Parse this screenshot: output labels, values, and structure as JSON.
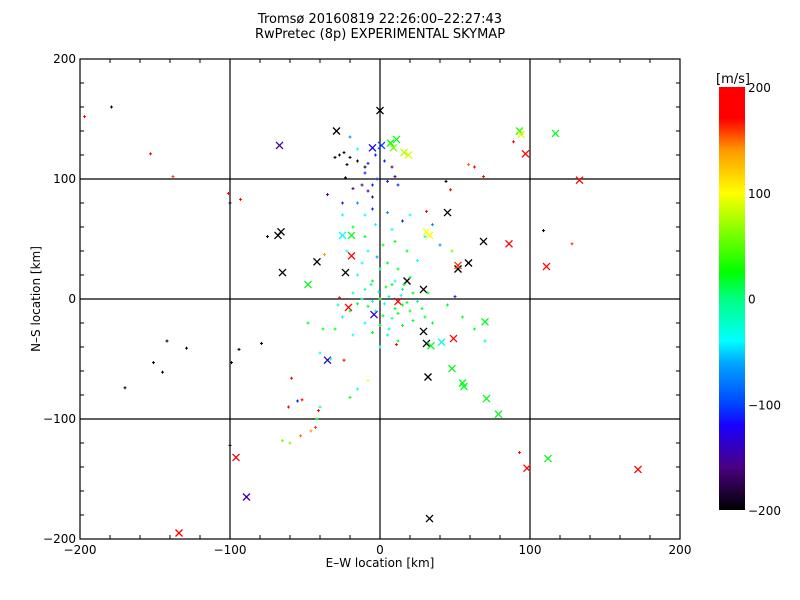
{
  "chart_data": {
    "type": "scatter",
    "title": "Tromsø 20160819 22:26:00–22:27:43",
    "subtitle": "RwPretec (8p) EXPERIMENTAL SKYMAP",
    "xlabel": "E–W location [km]",
    "ylabel": "N–S location [km]",
    "xlim": [
      -200,
      200
    ],
    "ylim": [
      -200,
      200
    ],
    "xticks": [
      -200,
      -100,
      0,
      100,
      200
    ],
    "yticks": [
      -200,
      -100,
      0,
      100,
      200
    ],
    "grid": true,
    "colorbar": {
      "label": "[m/s]",
      "range": [
        -200,
        200
      ],
      "ticks": [
        200,
        100,
        0,
        -100,
        -200
      ],
      "stops": [
        {
          "v": -200,
          "c": "#000000"
        },
        {
          "v": -160,
          "c": "#4a0080"
        },
        {
          "v": -120,
          "c": "#1a00ff"
        },
        {
          "v": -100,
          "c": "#0044ff"
        },
        {
          "v": -60,
          "c": "#00aaff"
        },
        {
          "v": -40,
          "c": "#00ffff"
        },
        {
          "v": 0,
          "c": "#00ff80"
        },
        {
          "v": 25,
          "c": "#00ff00"
        },
        {
          "v": 100,
          "c": "#ffff00"
        },
        {
          "v": 140,
          "c": "#ff9900"
        },
        {
          "v": 170,
          "c": "#ff0000"
        },
        {
          "v": 200,
          "c": "#ff0000"
        }
      ]
    },
    "series": [
      {
        "name": "crosses",
        "marker": "x",
        "points": [
          [
            0,
            157,
            -200
          ],
          [
            -29,
            140,
            -200
          ],
          [
            -67,
            128,
            -150
          ],
          [
            -68,
            53,
            -200
          ],
          [
            -66,
            56,
            -200
          ],
          [
            -65,
            22,
            -200
          ],
          [
            -42,
            31,
            -200
          ],
          [
            -23,
            22,
            -200
          ],
          [
            -25,
            53,
            -40
          ],
          [
            -19,
            53,
            20
          ],
          [
            -21,
            -7,
            190
          ],
          [
            -19,
            36,
            190
          ],
          [
            -35,
            -51,
            -140
          ],
          [
            -48,
            12,
            20
          ],
          [
            31,
            56,
            100
          ],
          [
            33,
            53,
            100
          ],
          [
            45,
            72,
            -200
          ],
          [
            69,
            48,
            -200
          ],
          [
            52,
            25,
            -200
          ],
          [
            52,
            28,
            160
          ],
          [
            59,
            30,
            -200
          ],
          [
            29,
            8,
            -200
          ],
          [
            18,
            15,
            -200
          ],
          [
            29,
            -27,
            -200
          ],
          [
            31,
            -37,
            -200
          ],
          [
            34,
            -39,
            20
          ],
          [
            41,
            -36,
            -30
          ],
          [
            49,
            -33,
            190
          ],
          [
            48,
            -58,
            20
          ],
          [
            32,
            -65,
            -200
          ],
          [
            55,
            -70,
            20
          ],
          [
            56,
            -73,
            20
          ],
          [
            70,
            -19,
            20
          ],
          [
            71,
            -83,
            20
          ],
          [
            79,
            -96,
            20
          ],
          [
            12,
            -2,
            190
          ],
          [
            -4,
            -13,
            -140
          ],
          [
            86,
            46,
            190
          ],
          [
            93,
            140,
            40
          ],
          [
            94,
            137,
            90
          ],
          [
            97,
            121,
            190
          ],
          [
            117,
            138,
            20
          ],
          [
            133,
            99,
            190
          ],
          [
            111,
            27,
            190
          ],
          [
            33,
            -183,
            -200
          ],
          [
            112,
            -133,
            20
          ],
          [
            98,
            -141,
            190
          ],
          [
            172,
            -142,
            190
          ],
          [
            -89,
            -165,
            -150
          ],
          [
            -96,
            -132,
            190
          ],
          [
            -134,
            -195,
            190
          ],
          [
            -5,
            126,
            -120
          ],
          [
            1,
            128,
            -100
          ],
          [
            7,
            130,
            30
          ],
          [
            11,
            133,
            20
          ],
          [
            9,
            126,
            60
          ],
          [
            16,
            122,
            80
          ],
          [
            19,
            120,
            90
          ]
        ]
      },
      {
        "name": "dots",
        "marker": "dot",
        "points": [
          [
            -179,
            160,
            -200
          ],
          [
            -100,
            80,
            -200
          ],
          [
            -75,
            52,
            -200
          ],
          [
            -142,
            -35,
            -200
          ],
          [
            -129,
            -41,
            -200
          ],
          [
            -151,
            -53,
            -200
          ],
          [
            -145,
            -61,
            -200
          ],
          [
            -170,
            -74,
            -200
          ],
          [
            -99,
            -53,
            -200
          ],
          [
            -94,
            -42,
            -200
          ],
          [
            -79,
            -37,
            -200
          ],
          [
            -23,
            101,
            -200
          ],
          [
            109,
            57,
            -200
          ],
          [
            44,
            98,
            -200
          ],
          [
            -100,
            -122,
            -200
          ],
          [
            -197,
            152,
            190
          ],
          [
            -153,
            121,
            190
          ],
          [
            -138,
            102,
            160
          ],
          [
            -101,
            88,
            190
          ],
          [
            -93,
            83,
            190
          ],
          [
            31,
            73,
            190
          ],
          [
            47,
            91,
            190
          ],
          [
            63,
            110,
            190
          ],
          [
            69,
            102,
            170
          ],
          [
            89,
            131,
            190
          ],
          [
            128,
            46,
            160
          ],
          [
            93,
            -128,
            190
          ],
          [
            -59,
            -66,
            190
          ],
          [
            -61,
            -90,
            190
          ],
          [
            -52,
            -84,
            190
          ],
          [
            -41,
            -93,
            190
          ],
          [
            -43,
            -107,
            160
          ],
          [
            -27,
            1,
            190
          ],
          [
            11,
            -38,
            190
          ],
          [
            -24,
            -51,
            190
          ],
          [
            59,
            112,
            150
          ],
          [
            -37,
            37,
            140
          ],
          [
            -53,
            -114,
            150
          ],
          [
            -46,
            -110,
            140
          ],
          [
            -30,
            118,
            -200
          ],
          [
            -27,
            120,
            -200
          ],
          [
            -24,
            122,
            -200
          ],
          [
            -20,
            118,
            -200
          ],
          [
            -22,
            112,
            -200
          ],
          [
            -15,
            115,
            -200
          ],
          [
            -10,
            110,
            -200
          ],
          [
            -12,
            95,
            -160
          ],
          [
            -8,
            90,
            -160
          ],
          [
            -5,
            85,
            -160
          ],
          [
            -18,
            92,
            -160
          ],
          [
            -35,
            87,
            -160
          ],
          [
            -3,
            120,
            -110
          ],
          [
            3,
            115,
            -110
          ],
          [
            -8,
            113,
            -110
          ],
          [
            8,
            110,
            -160
          ],
          [
            10,
            102,
            -160
          ],
          [
            -10,
            105,
            -110
          ],
          [
            -5,
            95,
            -110
          ],
          [
            5,
            98,
            -110
          ],
          [
            12,
            95,
            -110
          ],
          [
            -20,
            135,
            -70
          ],
          [
            -15,
            125,
            -40
          ],
          [
            -2,
            100,
            -110
          ],
          [
            -25,
            80,
            -110
          ],
          [
            -15,
            80,
            -70
          ],
          [
            -5,
            75,
            -110
          ],
          [
            5,
            72,
            -70
          ],
          [
            15,
            65,
            -110
          ],
          [
            -10,
            70,
            -40
          ],
          [
            -3,
            62,
            -40
          ],
          [
            8,
            58,
            -40
          ],
          [
            20,
            70,
            -40
          ],
          [
            -25,
            70,
            -40
          ],
          [
            -18,
            60,
            20
          ],
          [
            -10,
            52,
            20
          ],
          [
            2,
            45,
            20
          ],
          [
            10,
            48,
            20
          ],
          [
            18,
            40,
            20
          ],
          [
            -8,
            40,
            -40
          ],
          [
            -2,
            35,
            -70
          ],
          [
            -12,
            30,
            -40
          ],
          [
            5,
            30,
            20
          ],
          [
            12,
            25,
            20
          ],
          [
            20,
            18,
            20
          ],
          [
            25,
            32,
            -40
          ],
          [
            -22,
            40,
            -40
          ],
          [
            -15,
            20,
            -40
          ],
          [
            0,
            25,
            -15
          ],
          [
            -5,
            15,
            20
          ],
          [
            8,
            12,
            20
          ],
          [
            15,
            8,
            -15
          ],
          [
            22,
            5,
            20
          ],
          [
            -10,
            8,
            -15
          ],
          [
            30,
            52,
            -40
          ],
          [
            40,
            45,
            -70
          ],
          [
            35,
            62,
            -70
          ],
          [
            15,
            -5,
            20
          ],
          [
            -5,
            -2,
            -15
          ],
          [
            0,
            0,
            20
          ],
          [
            3,
            -4,
            -40
          ],
          [
            6,
            2,
            -15
          ],
          [
            10,
            -8,
            20
          ],
          [
            -8,
            -6,
            20
          ],
          [
            -12,
            0,
            -15
          ],
          [
            14,
            3,
            -40
          ],
          [
            18,
            -3,
            20
          ],
          [
            -3,
            -10,
            -40
          ],
          [
            2,
            -14,
            20
          ],
          [
            8,
            -16,
            -15
          ],
          [
            12,
            -12,
            20
          ],
          [
            -15,
            -4,
            20
          ],
          [
            -18,
            5,
            -15
          ],
          [
            20,
            -10,
            20
          ],
          [
            25,
            -2,
            -15
          ],
          [
            28,
            -8,
            20
          ],
          [
            -1,
            6,
            -40
          ],
          [
            4,
            10,
            20
          ],
          [
            -6,
            12,
            -15
          ],
          [
            10,
            15,
            -40
          ],
          [
            16,
            12,
            20
          ],
          [
            -20,
            -10,
            20
          ],
          [
            22,
            -18,
            20
          ],
          [
            -10,
            -20,
            -40
          ],
          [
            0,
            -22,
            20
          ],
          [
            6,
            -25,
            -15
          ],
          [
            15,
            -22,
            20
          ],
          [
            30,
            -15,
            20
          ],
          [
            -25,
            -15,
            -15
          ],
          [
            -30,
            -25,
            20
          ],
          [
            -28,
            -5,
            -15
          ],
          [
            32,
            5,
            20
          ],
          [
            35,
            -20,
            20
          ],
          [
            5,
            -30,
            -15
          ],
          [
            -5,
            -28,
            20
          ],
          [
            12,
            -35,
            20
          ],
          [
            0,
            -40,
            -40
          ],
          [
            -18,
            -30,
            -40
          ],
          [
            -40,
            -45,
            -40
          ],
          [
            -33,
            -50,
            -15
          ],
          [
            -55,
            -85,
            -110
          ],
          [
            -8,
            -68,
            100
          ],
          [
            -15,
            -75,
            -40
          ],
          [
            -40,
            -90,
            -15
          ],
          [
            -20,
            -82,
            20
          ],
          [
            -42,
            -100,
            20
          ],
          [
            -60,
            -120,
            60
          ],
          [
            -65,
            -118,
            60
          ],
          [
            -48,
            -20,
            20
          ],
          [
            -38,
            -25,
            20
          ],
          [
            50,
            2,
            -110
          ],
          [
            48,
            40,
            60
          ],
          [
            45,
            -5,
            20
          ],
          [
            55,
            -15,
            20
          ],
          [
            63,
            -25,
            20
          ],
          [
            70,
            -35,
            -15
          ]
        ]
      }
    ]
  }
}
